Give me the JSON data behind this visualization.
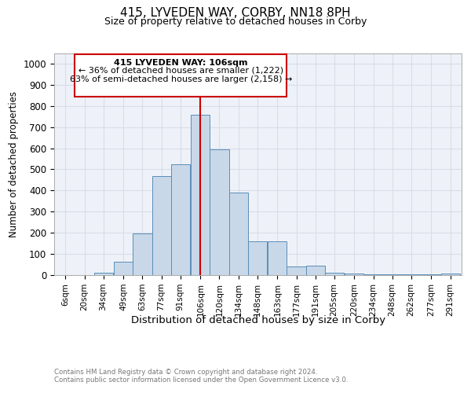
{
  "title": "415, LYVEDEN WAY, CORBY, NN18 8PH",
  "subtitle": "Size of property relative to detached houses in Corby",
  "xlabel": "Distribution of detached houses by size in Corby",
  "ylabel": "Number of detached properties",
  "footnote1": "Contains HM Land Registry data © Crown copyright and database right 2024.",
  "footnote2": "Contains public sector information licensed under the Open Government Licence v3.0.",
  "annotation_line1": "415 LYVEDEN WAY: 106sqm",
  "annotation_line2": "← 36% of detached houses are smaller (1,222)",
  "annotation_line3": "63% of semi-detached houses are larger (2,158) →",
  "bar_color": "#c8d8e8",
  "bar_edge_color": "#5b8db8",
  "vline_color": "#cc0000",
  "vline_x": 106,
  "annotation_box_edge_color": "#cc0000",
  "categories": [
    6,
    20,
    34,
    49,
    63,
    77,
    91,
    106,
    120,
    134,
    148,
    163,
    177,
    191,
    205,
    220,
    234,
    248,
    262,
    277,
    291
  ],
  "bin_width": 14,
  "values": [
    0,
    0,
    12,
    63,
    197,
    470,
    523,
    760,
    595,
    390,
    160,
    160,
    40,
    43,
    10,
    8,
    5,
    5,
    5,
    5,
    8
  ],
  "ylim": [
    0,
    1050
  ],
  "yticks": [
    0,
    100,
    200,
    300,
    400,
    500,
    600,
    700,
    800,
    900,
    1000
  ],
  "grid_color": "#d8dde8",
  "background_color": "#eef2f8",
  "fig_background": "#ffffff"
}
